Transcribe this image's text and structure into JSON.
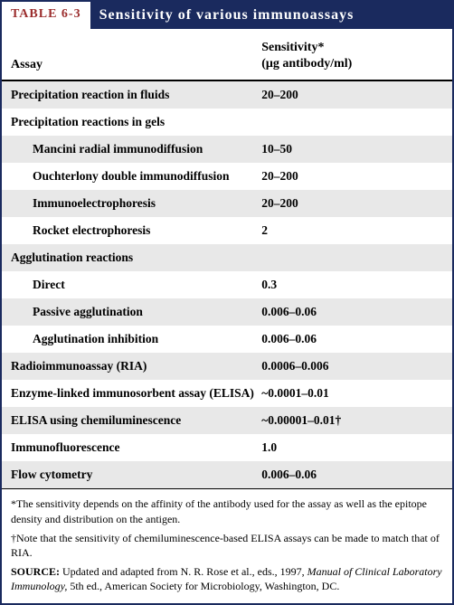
{
  "table_label": "TABLE 6-3",
  "table_title": "Sensitivity of various immunoassays",
  "header": {
    "col1": "Assay",
    "col2_line1": "Sensitivity*",
    "col2_line2": "(μg antibody/ml)"
  },
  "rows": [
    {
      "label": "Precipitation reaction in fluids",
      "value": "20–200",
      "shaded": true,
      "indent": false
    },
    {
      "label": "Precipitation reactions in gels",
      "value": "",
      "shaded": false,
      "indent": false
    },
    {
      "label": "Mancini radial immunodiffusion",
      "value": "10–50",
      "shaded": true,
      "indent": true
    },
    {
      "label": "Ouchterlony double immunodiffusion",
      "value": "20–200",
      "shaded": false,
      "indent": true
    },
    {
      "label": "Immunoelectrophoresis",
      "value": "20–200",
      "shaded": true,
      "indent": true
    },
    {
      "label": "Rocket electrophoresis",
      "value": "2",
      "shaded": false,
      "indent": true
    },
    {
      "label": "Agglutination reactions",
      "value": "",
      "shaded": true,
      "indent": false
    },
    {
      "label": "Direct",
      "value": "0.3",
      "shaded": false,
      "indent": true
    },
    {
      "label": "Passive agglutination",
      "value": "0.006–0.06",
      "shaded": true,
      "indent": true
    },
    {
      "label": "Agglutination inhibition",
      "value": "0.006–0.06",
      "shaded": false,
      "indent": true
    },
    {
      "label": "Radioimmunoassay (RIA)",
      "value": "0.0006–0.006",
      "shaded": true,
      "indent": false
    },
    {
      "label": "Enzyme-linked immunosorbent assay (ELISA)",
      "value": "~0.0001–0.01",
      "shaded": false,
      "indent": false
    },
    {
      "label": "ELISA using chemiluminescence",
      "value": "~0.00001–0.01†",
      "shaded": true,
      "indent": false
    },
    {
      "label": "Immunofluorescence",
      "value": "1.0",
      "shaded": false,
      "indent": false
    },
    {
      "label": "Flow cytometry",
      "value": "0.006–0.06",
      "shaded": true,
      "indent": false
    }
  ],
  "footnotes": {
    "note1": "*The sensitivity depends on the affinity of the antibody used for the assay as well as the epitope density and distribution on the antigen.",
    "note2": "†Note that the sensitivity of chemiluminescence-based ELISA assays can be made to match that of RIA.",
    "source_prefix": "SOURCE:",
    "source_text": " Updated and adapted from N. R. Rose et al., eds., 1997, ",
    "source_italic": "Manual of Clinical Laboratory Immunology,",
    "source_tail": " 5th ed., American Society for Microbiology, Washington, DC."
  },
  "colors": {
    "border": "#1a2a5e",
    "title_bg": "#1a2a5e",
    "title_fg": "#ffffff",
    "label_fg": "#9b2d2d",
    "shaded_row": "#e8e8e8",
    "text": "#000000"
  }
}
